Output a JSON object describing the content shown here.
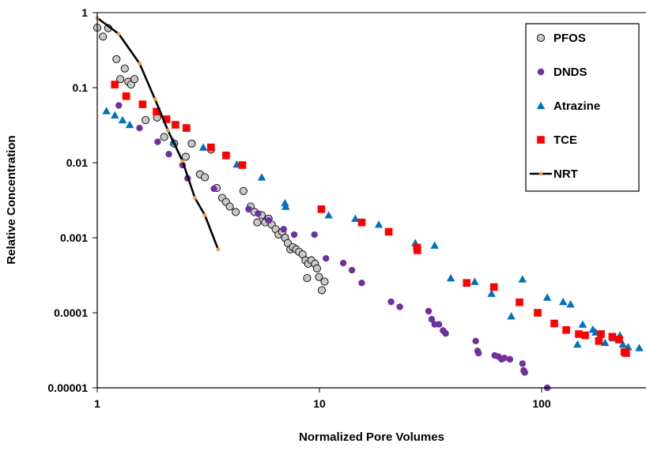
{
  "chart_data": {
    "type": "scatter",
    "title": "",
    "xlabel": "Normalized Pore Volumes",
    "ylabel": "Relative Concentration",
    "x_scale": "log",
    "y_scale": "log",
    "xlim": [
      1,
      300
    ],
    "ylim": [
      1e-05,
      1
    ],
    "x_ticks": [
      1,
      10,
      100
    ],
    "x_tick_labels": [
      "1",
      "10",
      "100"
    ],
    "y_ticks": [
      1e-05,
      0.0001,
      0.001,
      0.01,
      0.1,
      1
    ],
    "y_tick_labels": [
      "0.00001",
      "0.0001",
      "0.001",
      "0.01",
      "0.1",
      "1"
    ],
    "grid": false,
    "legend_position": "top-right",
    "series": [
      {
        "name": "PFOS",
        "marker": "circle-open",
        "color": "#c8c8c8",
        "edge_color": "#000000",
        "points": [
          [
            1.0,
            0.63
          ],
          [
            1.06,
            0.48
          ],
          [
            1.12,
            0.62
          ],
          [
            1.22,
            0.24
          ],
          [
            1.27,
            0.13
          ],
          [
            1.33,
            0.18
          ],
          [
            1.38,
            0.12
          ],
          [
            1.42,
            0.11
          ],
          [
            1.47,
            0.13
          ],
          [
            1.65,
            0.037
          ],
          [
            1.86,
            0.04
          ],
          [
            2.0,
            0.022
          ],
          [
            2.22,
            0.018
          ],
          [
            2.5,
            0.012
          ],
          [
            2.66,
            0.018
          ],
          [
            2.9,
            0.007
          ],
          [
            3.05,
            0.0064
          ],
          [
            3.25,
            0.015
          ],
          [
            3.45,
            0.0046
          ],
          [
            3.65,
            0.0034
          ],
          [
            3.8,
            0.003
          ],
          [
            3.95,
            0.0026
          ],
          [
            4.2,
            0.0022
          ],
          [
            4.55,
            0.0042
          ],
          [
            4.9,
            0.0026
          ],
          [
            5.1,
            0.0022
          ],
          [
            5.25,
            0.0016
          ],
          [
            5.5,
            0.002
          ],
          [
            5.7,
            0.0016
          ],
          [
            5.9,
            0.0018
          ],
          [
            6.1,
            0.0015
          ],
          [
            6.35,
            0.0013
          ],
          [
            6.55,
            0.0011
          ],
          [
            6.8,
            0.0012
          ],
          [
            7.0,
            0.001
          ],
          [
            7.2,
            0.00085
          ],
          [
            7.4,
            0.0007
          ],
          [
            7.6,
            0.00075
          ],
          [
            7.85,
            0.0007
          ],
          [
            8.1,
            0.00065
          ],
          [
            8.4,
            0.0006
          ],
          [
            8.65,
            0.0005
          ],
          [
            8.9,
            0.00045
          ],
          [
            8.8,
            0.00029
          ],
          [
            9.2,
            0.0005
          ],
          [
            9.55,
            0.00045
          ],
          [
            9.75,
            0.00039
          ],
          [
            9.95,
            0.0003
          ],
          [
            10.25,
            0.0002
          ],
          [
            10.55,
            0.00026
          ]
        ]
      },
      {
        "name": "DNDS",
        "marker": "circle",
        "color": "#7030a0",
        "points": [
          [
            1.25,
            0.058
          ],
          [
            1.55,
            0.029
          ],
          [
            1.87,
            0.019
          ],
          [
            2.1,
            0.013
          ],
          [
            2.42,
            0.0093
          ],
          [
            2.55,
            0.0062
          ],
          [
            3.35,
            0.0045
          ],
          [
            4.8,
            0.0024
          ],
          [
            5.3,
            0.0021
          ],
          [
            5.9,
            0.0017
          ],
          [
            6.9,
            0.0013
          ],
          [
            7.7,
            0.0011
          ],
          [
            9.5,
            0.0011
          ],
          [
            10.7,
            0.00053
          ],
          [
            12.8,
            0.00046
          ],
          [
            14.0,
            0.00037
          ],
          [
            15.5,
            0.00025
          ],
          [
            21.0,
            0.00014
          ],
          [
            23.0,
            0.00012
          ],
          [
            31.0,
            0.000105
          ],
          [
            32.0,
            8.2e-05
          ],
          [
            33.0,
            7e-05
          ],
          [
            34.5,
            7e-05
          ],
          [
            36.0,
            5.8e-05
          ],
          [
            37.0,
            5.3e-05
          ],
          [
            50.5,
            4.2e-05
          ],
          [
            51.5,
            3.1e-05
          ],
          [
            52.0,
            2.9e-05
          ],
          [
            61.5,
            2.7e-05
          ],
          [
            64.0,
            2.6e-05
          ],
          [
            66.0,
            2.4e-05
          ],
          [
            68.0,
            2.5e-05
          ],
          [
            72.0,
            2.4e-05
          ],
          [
            82.0,
            2.1e-05
          ],
          [
            83.0,
            1.7e-05
          ],
          [
            84.0,
            1.6e-05
          ],
          [
            106.0,
            1e-05
          ]
        ]
      },
      {
        "name": "Atrazine",
        "marker": "triangle",
        "color": "#0070c0",
        "points": [
          [
            1.1,
            0.049
          ],
          [
            1.2,
            0.043
          ],
          [
            1.3,
            0.037
          ],
          [
            1.4,
            0.032
          ],
          [
            2.2,
            0.019
          ],
          [
            3.0,
            0.016
          ],
          [
            4.25,
            0.0095
          ],
          [
            5.5,
            0.0064
          ],
          [
            7.0,
            0.0029
          ],
          [
            7.05,
            0.0026
          ],
          [
            11.0,
            0.002
          ],
          [
            14.5,
            0.0018
          ],
          [
            18.5,
            0.0015
          ],
          [
            27.0,
            0.00085
          ],
          [
            33.0,
            0.00079
          ],
          [
            39.0,
            0.00029
          ],
          [
            50.0,
            0.00026
          ],
          [
            59.5,
            0.00018
          ],
          [
            73.0,
            9e-05
          ],
          [
            82.0,
            0.00028
          ],
          [
            106.0,
            0.00016
          ],
          [
            125.0,
            0.00014
          ],
          [
            135.0,
            0.00013
          ],
          [
            145.0,
            3.8e-05
          ],
          [
            153.0,
            7e-05
          ],
          [
            170.0,
            6e-05
          ],
          [
            175.0,
            5.5e-05
          ],
          [
            193.0,
            4e-05
          ],
          [
            210.0,
            4.6e-05
          ],
          [
            225.0,
            5e-05
          ],
          [
            232.0,
            3.8e-05
          ],
          [
            245.0,
            3.5e-05
          ],
          [
            275.0,
            3.4e-05
          ]
        ]
      },
      {
        "name": "TCE",
        "marker": "square",
        "color": "#ff0000",
        "points": [
          [
            1.2,
            0.11
          ],
          [
            1.35,
            0.077
          ],
          [
            1.6,
            0.06
          ],
          [
            1.85,
            0.048
          ],
          [
            2.05,
            0.038
          ],
          [
            2.25,
            0.032
          ],
          [
            2.52,
            0.029
          ],
          [
            3.25,
            0.016
          ],
          [
            3.8,
            0.0125
          ],
          [
            4.5,
            0.0093
          ],
          [
            10.2,
            0.0024
          ],
          [
            15.5,
            0.0016
          ],
          [
            20.5,
            0.0012
          ],
          [
            27.5,
            0.00074
          ],
          [
            27.6,
            0.00068
          ],
          [
            46.0,
            0.00025
          ],
          [
            61.0,
            0.00022
          ],
          [
            79.5,
            0.000138
          ],
          [
            96.0,
            0.0001
          ],
          [
            114.0,
            7.2e-05
          ],
          [
            129.0,
            5.9e-05
          ],
          [
            147.0,
            5.2e-05
          ],
          [
            157.0,
            5e-05
          ],
          [
            181.0,
            4.2e-05
          ],
          [
            185.0,
            5.2e-05
          ],
          [
            208.0,
            4.8e-05
          ],
          [
            223.0,
            4.4e-05
          ],
          [
            236.0,
            3e-05
          ],
          [
            240.0,
            2.9e-05
          ]
        ]
      },
      {
        "name": "NRT",
        "marker": "line-dot",
        "color": "#000000",
        "marker_color": "#f79646",
        "points": [
          [
            1.0,
            0.85
          ],
          [
            1.25,
            0.52
          ],
          [
            1.55,
            0.21
          ],
          [
            1.82,
            0.07
          ],
          [
            2.08,
            0.027
          ],
          [
            2.42,
            0.0105
          ],
          [
            2.75,
            0.0034
          ],
          [
            3.05,
            0.002
          ],
          [
            3.5,
            0.0007
          ]
        ]
      }
    ]
  }
}
